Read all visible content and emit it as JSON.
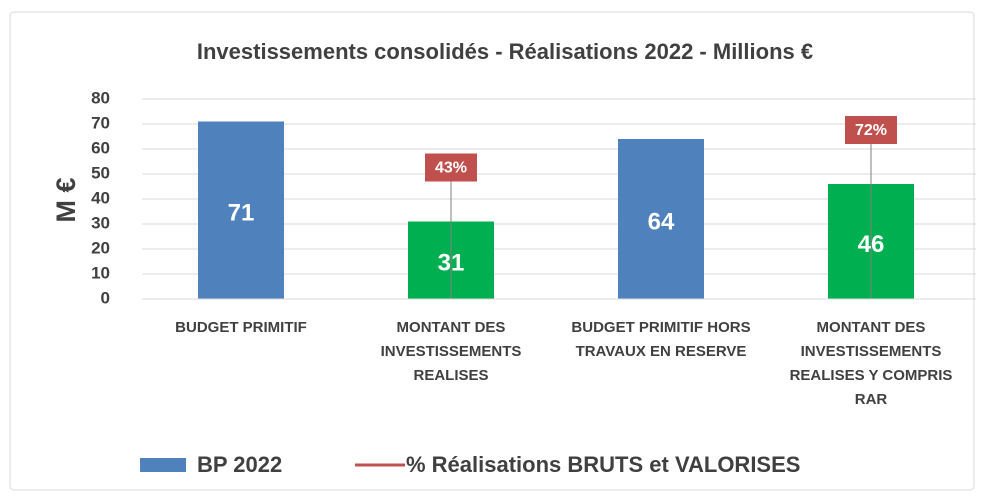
{
  "chart_data": {
    "type": "bar",
    "title": "Investissements consolidés - Réalisations 2022 - Millions €",
    "y_label": "M €",
    "categories": [
      "BUDGET PRIMITIF",
      "MONTANT DES INVESTISSEMENTS REALISES",
      "BUDGET PRIMITIF HORS TRAVAUX EN RESERVE",
      "MONTANT DES INVESTISSEMENTS REALISES Y COMPRIS RAR"
    ],
    "series": [
      {
        "name": "BP 2022",
        "color": "#4f81bd",
        "colors": [
          "#4f81bd",
          "#00b050",
          "#4f81bd",
          "#00b050"
        ],
        "values": [
          71,
          31,
          64,
          46
        ]
      },
      {
        "name": "% Réalisations BRUTS et VALORISES",
        "color": "#c0504d",
        "values": [
          null,
          43,
          null,
          72
        ],
        "value_labels": [
          null,
          "43%",
          null,
          "72%"
        ]
      }
    ],
    "ylim": [
      0,
      80
    ],
    "yticks": [
      0,
      10,
      20,
      30,
      40,
      50,
      60,
      70,
      80
    ],
    "grid": true
  }
}
